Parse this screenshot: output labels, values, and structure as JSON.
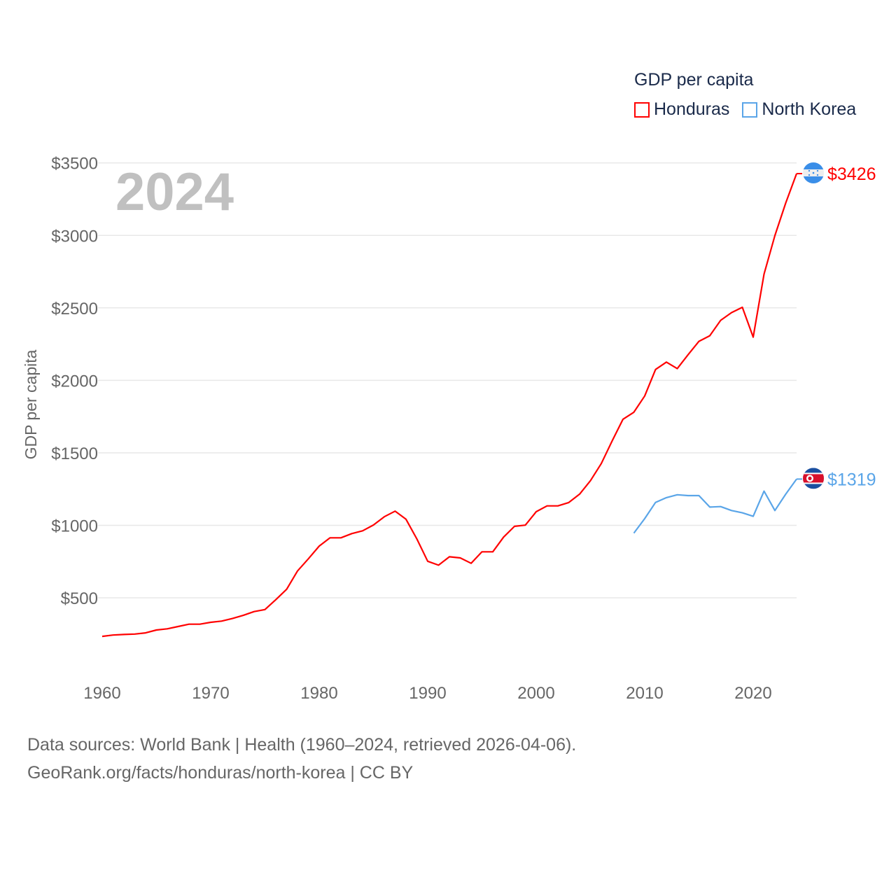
{
  "chart_data": {
    "type": "line",
    "title": "GDP per capita",
    "ylabel": "GDP per capita",
    "xlabel": "",
    "year_label": "2024",
    "xlim": [
      1960,
      2024
    ],
    "ylim": [
      0,
      3600
    ],
    "x_ticks": [
      1960,
      1970,
      1980,
      1990,
      2000,
      2010,
      2020
    ],
    "x_tick_labels": [
      "1960",
      "1970",
      "1980",
      "1990",
      "2000",
      "2010",
      "2020"
    ],
    "y_ticks": [
      500,
      1000,
      1500,
      2000,
      2500,
      3000,
      3500
    ],
    "y_tick_labels": [
      "$500",
      "$1000",
      "$1500",
      "$2000",
      "$2500",
      "$3000",
      "$3500"
    ],
    "grid": true,
    "legend_position": "top-right",
    "series": [
      {
        "name": "Honduras",
        "color": "#ff0000",
        "flag": "honduras-flag",
        "end_label": "$3426",
        "start_year": 1960,
        "values": [
          234,
          243,
          247,
          250,
          258,
          278,
          286,
          302,
          318,
          318,
          331,
          339,
          357,
          379,
          405,
          419,
          487,
          559,
          685,
          769,
          857,
          914,
          914,
          943,
          962,
          1002,
          1059,
          1098,
          1042,
          906,
          752,
          725,
          783,
          775,
          738,
          817,
          817,
          919,
          993,
          1001,
          1094,
          1134,
          1134,
          1157,
          1215,
          1308,
          1426,
          1582,
          1732,
          1780,
          1892,
          2075,
          2126,
          2081,
          2177,
          2269,
          2308,
          2414,
          2467,
          2504,
          2298,
          2733,
          2999,
          3224,
          3426
        ]
      },
      {
        "name": "North Korea",
        "color": "#5aa5e8",
        "flag": "north-korea-flag",
        "end_label": "$1319",
        "start_year": 2009,
        "values": [
          946,
          1046,
          1158,
          1191,
          1211,
          1205,
          1205,
          1126,
          1129,
          1102,
          1086,
          1062,
          1236,
          1102,
          1215,
          1319
        ]
      }
    ]
  },
  "footer": {
    "line1": "Data sources: World Bank | Health (1960–2024, retrieved 2026-04-06).",
    "line2": "GeoRank.org/facts/honduras/north-korea | CC BY"
  }
}
